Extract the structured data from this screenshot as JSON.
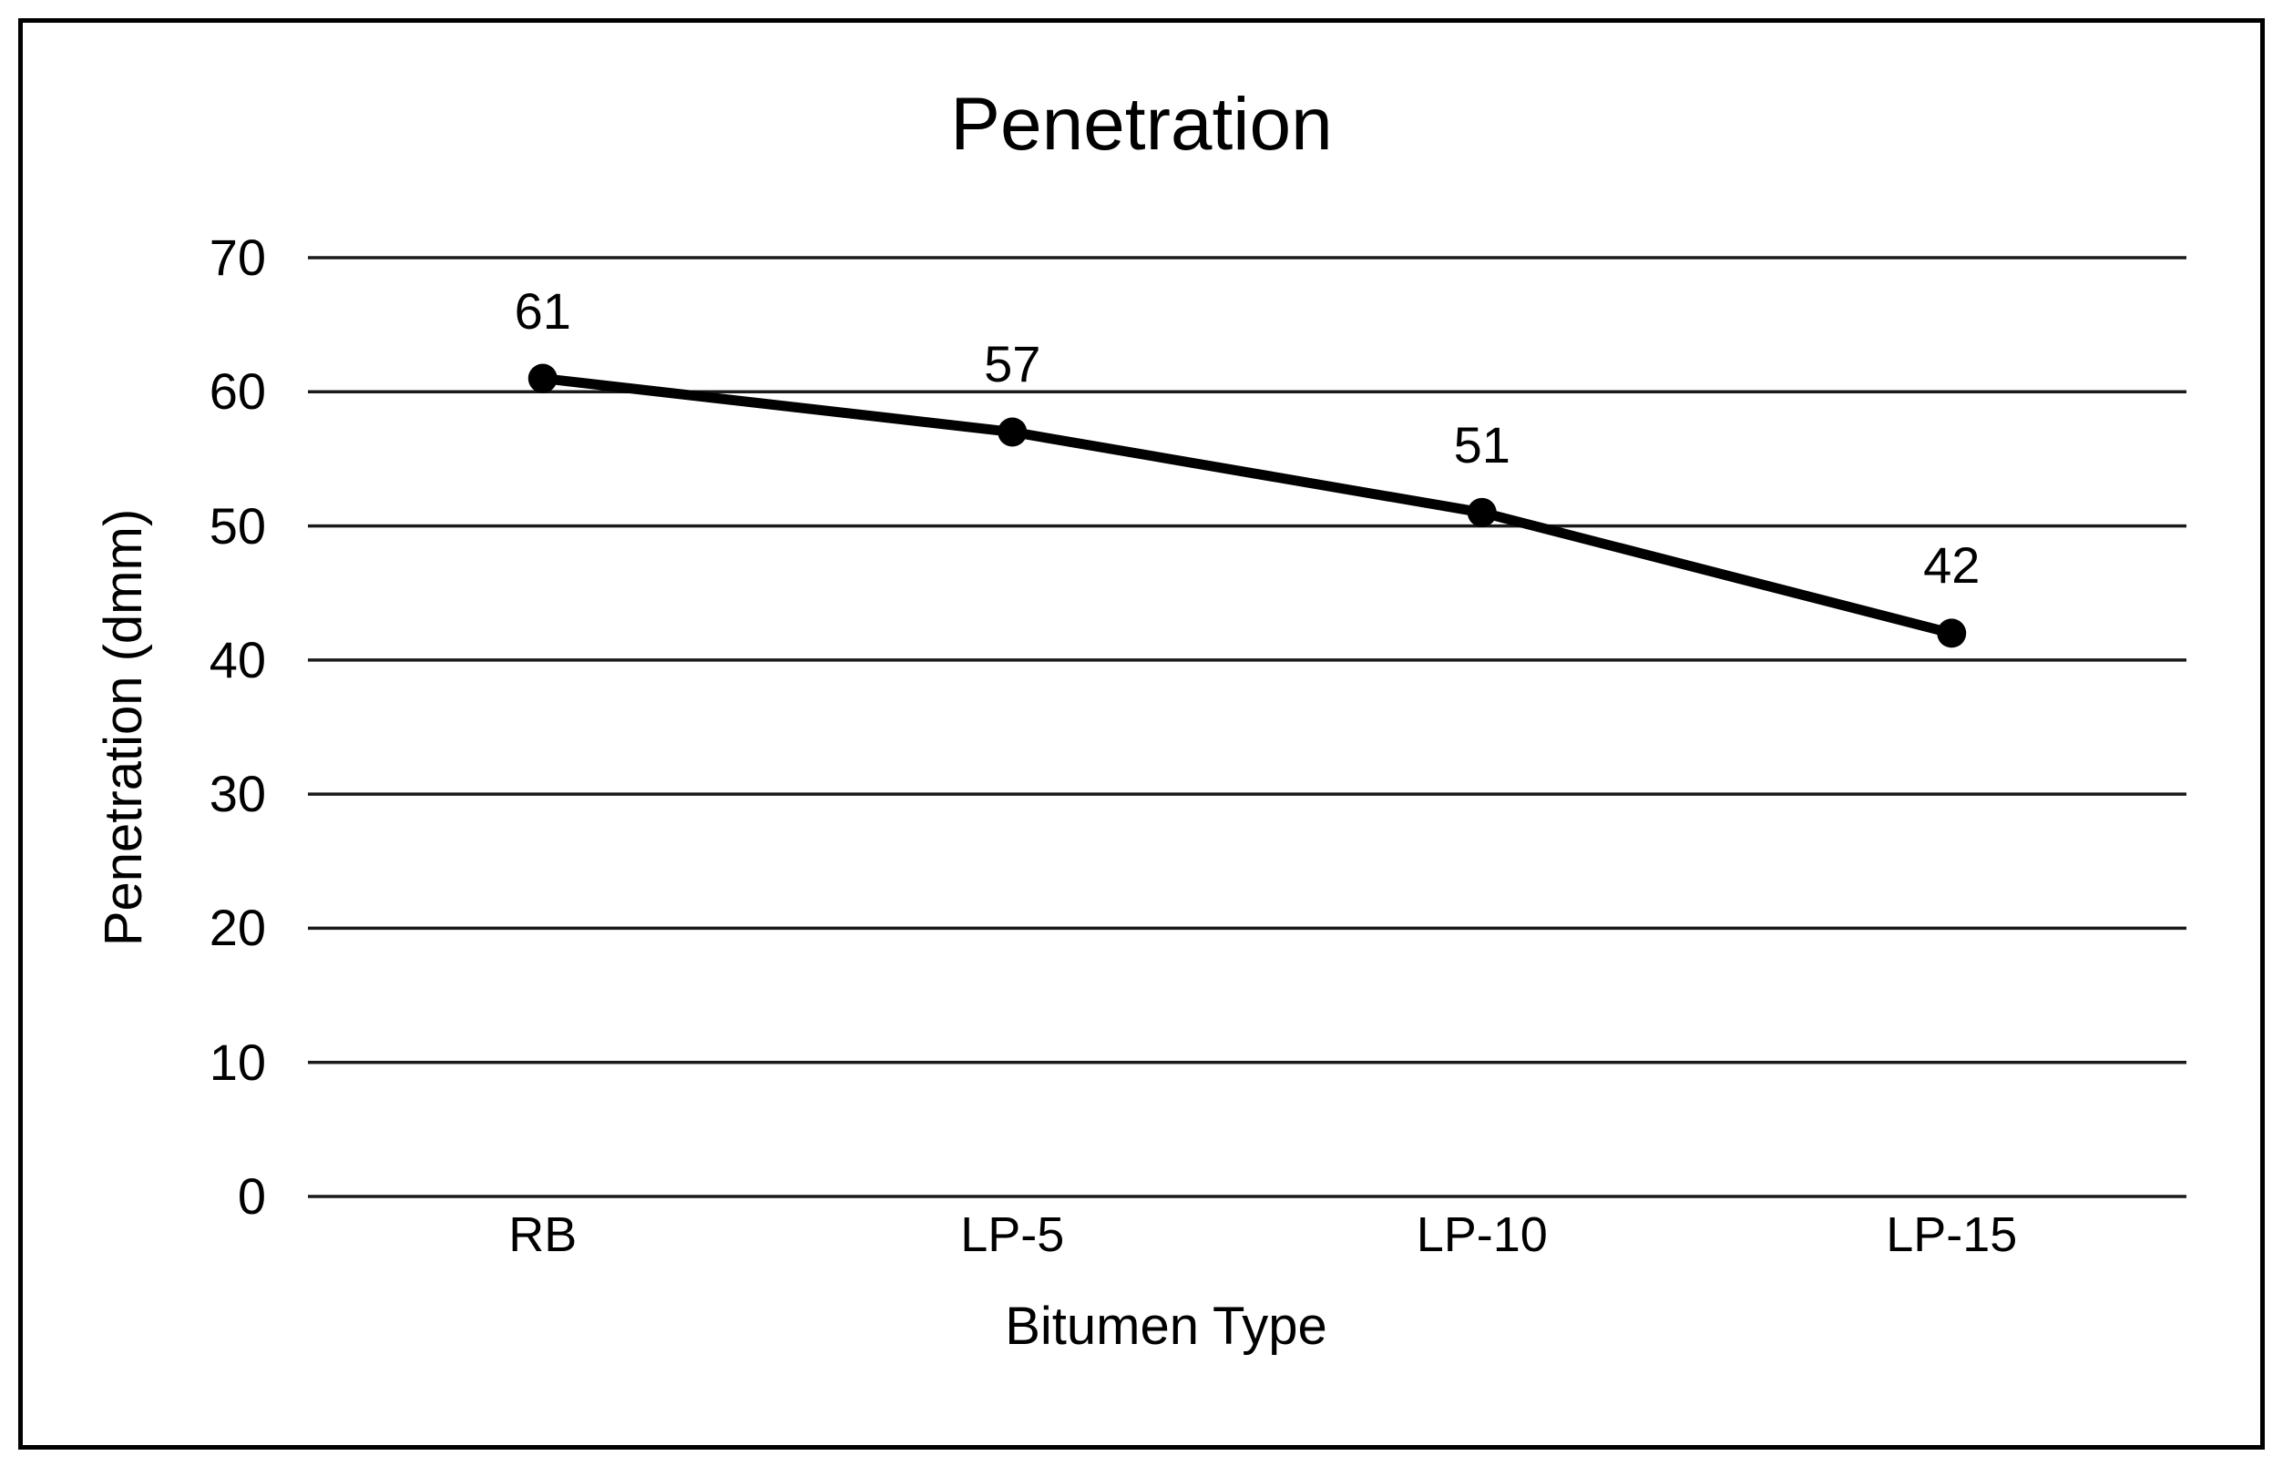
{
  "chart_data": {
    "type": "line",
    "title": "Penetration",
    "xlabel": "Bitumen Type",
    "ylabel": "Penetration (dmm)",
    "categories": [
      "RB",
      "LP-5",
      "LP-10",
      "LP-15"
    ],
    "series": [
      {
        "name": "Penetration",
        "values": [
          61,
          57,
          51,
          42
        ]
      }
    ],
    "data_labels": [
      "61",
      "57",
      "51",
      "42"
    ],
    "yticks": [
      0,
      10,
      20,
      30,
      40,
      50,
      60,
      70
    ],
    "ylim": [
      0,
      70
    ],
    "grid": "horizontal-only",
    "legend_position": "none",
    "line_color": "#000000",
    "marker": "filled-circle",
    "gridline_color": "#1a1a1a",
    "frame_border_color": "#000000",
    "background_color": "#ffffff"
  }
}
